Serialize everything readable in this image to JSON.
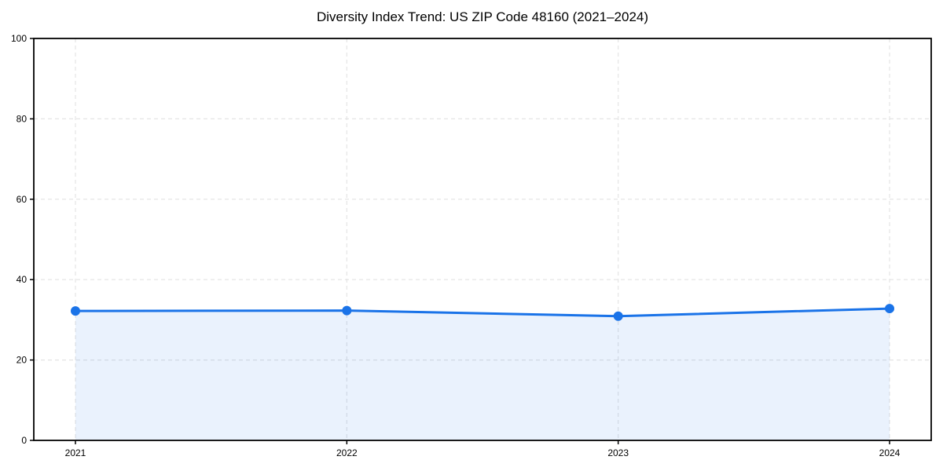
{
  "chart_data": {
    "type": "area",
    "title": "Diversity Index Trend: US ZIP Code 48160 (2021–2024)",
    "categories": [
      "2021",
      "2022",
      "2023",
      "2024"
    ],
    "values": [
      32.2,
      32.3,
      30.9,
      32.8
    ],
    "xlabel": "",
    "ylabel": "",
    "ylim": [
      0,
      100
    ],
    "yticks": [
      0,
      20,
      40,
      60,
      80,
      100
    ],
    "grid": true,
    "legend": "none",
    "colors": {
      "line": "#1a73e8",
      "marker": "#1a73e8",
      "fill": "#1a73e8",
      "fill_opacity": 0.09,
      "grid": "#e4e4e4",
      "axis": "#000000",
      "text": "#000000",
      "background": "#ffffff"
    }
  }
}
